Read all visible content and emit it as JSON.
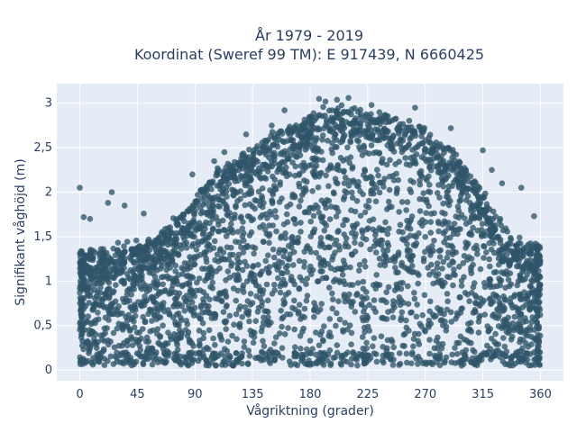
{
  "chart_data": {
    "type": "scatter",
    "title_line1": "År 1979 - 2019",
    "title_line2": "Koordinat (Sweref 99 TM): E 917439, N 6660425",
    "xlabel": "Vågriktning (grader)",
    "ylabel": "Signifikant våghöjd (m)",
    "xlim": [
      -18,
      378
    ],
    "ylim": [
      -0.12,
      3.22
    ],
    "x_ticks": [
      0,
      45,
      90,
      135,
      180,
      225,
      270,
      315,
      360
    ],
    "x_tick_labels": [
      "0",
      "45",
      "90",
      "135",
      "180",
      "225",
      "270",
      "315",
      "360"
    ],
    "y_ticks": [
      0,
      0.5,
      1,
      1.5,
      2,
      2.5,
      3
    ],
    "y_tick_labels": [
      "0",
      "0,5",
      "1",
      "1,5",
      "2",
      "2,5",
      "3"
    ],
    "grid": true,
    "legend": "none",
    "colors": {
      "marker": "#2f5469",
      "plot_bg": "#e5ecf6",
      "grid": "#ffffff",
      "text": "#2a3f5f"
    },
    "envelope": {
      "description_direction": [
        0,
        20,
        45,
        60,
        80,
        90,
        105,
        120,
        135,
        150,
        165,
        180,
        195,
        210,
        225,
        240,
        255,
        270,
        285,
        300,
        315,
        330,
        345,
        360
      ],
      "max_height": [
        1.35,
        1.4,
        1.4,
        1.5,
        1.75,
        1.95,
        2.2,
        2.35,
        2.5,
        2.65,
        2.75,
        2.85,
        2.95,
        2.95,
        2.95,
        2.9,
        2.8,
        2.7,
        2.55,
        2.3,
        2.0,
        1.65,
        1.45,
        1.4
      ],
      "min_height": 0.05
    },
    "outliers": [
      {
        "x": 0,
        "y": 2.05
      },
      {
        "x": 3,
        "y": 1.72
      },
      {
        "x": 8,
        "y": 1.7
      },
      {
        "x": 22,
        "y": 1.88
      },
      {
        "x": 25,
        "y": 2.0
      },
      {
        "x": 35,
        "y": 1.85
      },
      {
        "x": 50,
        "y": 1.76
      },
      {
        "x": 88,
        "y": 2.2
      },
      {
        "x": 105,
        "y": 2.35
      },
      {
        "x": 113,
        "y": 2.45
      },
      {
        "x": 130,
        "y": 2.65
      },
      {
        "x": 150,
        "y": 2.75
      },
      {
        "x": 160,
        "y": 2.92
      },
      {
        "x": 187,
        "y": 3.05
      },
      {
        "x": 192,
        "y": 3.02
      },
      {
        "x": 201,
        "y": 3.04
      },
      {
        "x": 210,
        "y": 3.06
      },
      {
        "x": 228,
        "y": 2.98
      },
      {
        "x": 262,
        "y": 2.95
      },
      {
        "x": 290,
        "y": 2.72
      },
      {
        "x": 315,
        "y": 2.47
      },
      {
        "x": 322,
        "y": 2.25
      },
      {
        "x": 330,
        "y": 2.1
      },
      {
        "x": 345,
        "y": 2.05
      },
      {
        "x": 355,
        "y": 1.73
      }
    ]
  }
}
